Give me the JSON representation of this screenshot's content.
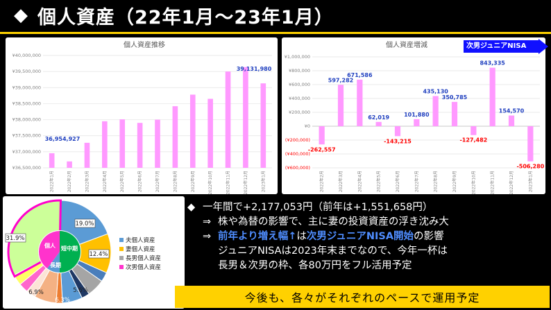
{
  "header": {
    "diamond": "◆",
    "title": "個人資産（22年1月～23年1月）"
  },
  "chart_data": [
    {
      "type": "bar",
      "title": "個人資産推移",
      "categories": [
        "2022年1月",
        "2022年2月",
        "2022年3月",
        "2022年4月",
        "2022年5月",
        "2022年6月",
        "2022年7月",
        "2022年8月",
        "2022年9月",
        "2022年10月",
        "2022年11月",
        "2022年12月",
        "2023年1月"
      ],
      "values": [
        36954927,
        36700000,
        37280000,
        37950000,
        38010000,
        37900000,
        38000000,
        38420000,
        38780000,
        38650000,
        39500000,
        39640000,
        39131980
      ],
      "data_labels": [
        {
          "index": 0,
          "text": "36,954,927"
        },
        {
          "index": 12,
          "text": "39,131,980"
        }
      ],
      "ylim": [
        36500000,
        40000000
      ],
      "yticks": [
        "¥36,500,000",
        "¥37,000,000",
        "¥37,500,000",
        "¥38,000,000",
        "¥38,500,000",
        "¥39,000,000",
        "¥39,500,000",
        "¥40,000,000"
      ],
      "color": "#ff99ff",
      "grid": true
    },
    {
      "type": "bar",
      "title": "個人資産増減",
      "categories": [
        "2022年2月",
        "2022年3月",
        "2022年4月",
        "2022年5月",
        "2022年6月",
        "2022年7月",
        "2022年8月",
        "2022年9月",
        "2022年10月",
        "2022年11月",
        "2022年12月",
        "2023年1月"
      ],
      "values": [
        -262557,
        597282,
        671586,
        62019,
        -143215,
        101880,
        435130,
        350785,
        -127482,
        843335,
        154570,
        -506280
      ],
      "data_labels": [
        "-262,557",
        "597,282",
        "671,586",
        "62,019",
        "-143,215",
        "101,880",
        "435,130",
        "350,785",
        "-127,482",
        "843,335",
        "154,570",
        "-506,280"
      ],
      "ylim": [
        -600000,
        1000000
      ],
      "yticks": [
        "(¥600,000)",
        "(¥400,000)",
        "(¥200,000)",
        "¥0",
        "¥200,000",
        "¥400,000",
        "¥600,000",
        "¥800,000",
        "¥1,000,000"
      ],
      "color": "#ff99ff",
      "grid": true,
      "annotation": "次男ジュニアNISA"
    },
    {
      "type": "pie",
      "legend": [
        {
          "name": "夫個人資産",
          "color": "#5b9bd5"
        },
        {
          "name": "妻個人資産",
          "color": "#ffc000"
        },
        {
          "name": "長男個人資産",
          "color": "#a5a5a5"
        },
        {
          "name": "次男個人資産",
          "color": "#ff33cc"
        }
      ],
      "slice_labels": [
        "19.0%",
        "12.4%",
        "5.6%",
        "6.3%",
        "6.9%",
        "31.9%"
      ],
      "inner_labels": [
        "個人",
        "短中期",
        "長期"
      ]
    }
  ],
  "notes": [
    {
      "marker": "◆",
      "text": "一年間で+2,177,053円（前年は+1,551,658円）"
    },
    {
      "marker": "⇒",
      "text": "株や為替の影響で、主に妻の投資資産の浮き沈み大"
    },
    {
      "marker": "⇒",
      "highlight": "前年より増え幅↑",
      "mid": "は",
      "highlight2": "次男ジュニアNISA開始",
      "rest": "の影響"
    },
    {
      "marker": "",
      "text": "ジュニアNISAは2023年末までなので、今年一杯は"
    },
    {
      "marker": "",
      "text": "長男＆次男の枠、各80万円をフル活用予定"
    }
  ],
  "banner": {
    "text": "今後も、各々がそれぞれのペースで運用予定"
  }
}
